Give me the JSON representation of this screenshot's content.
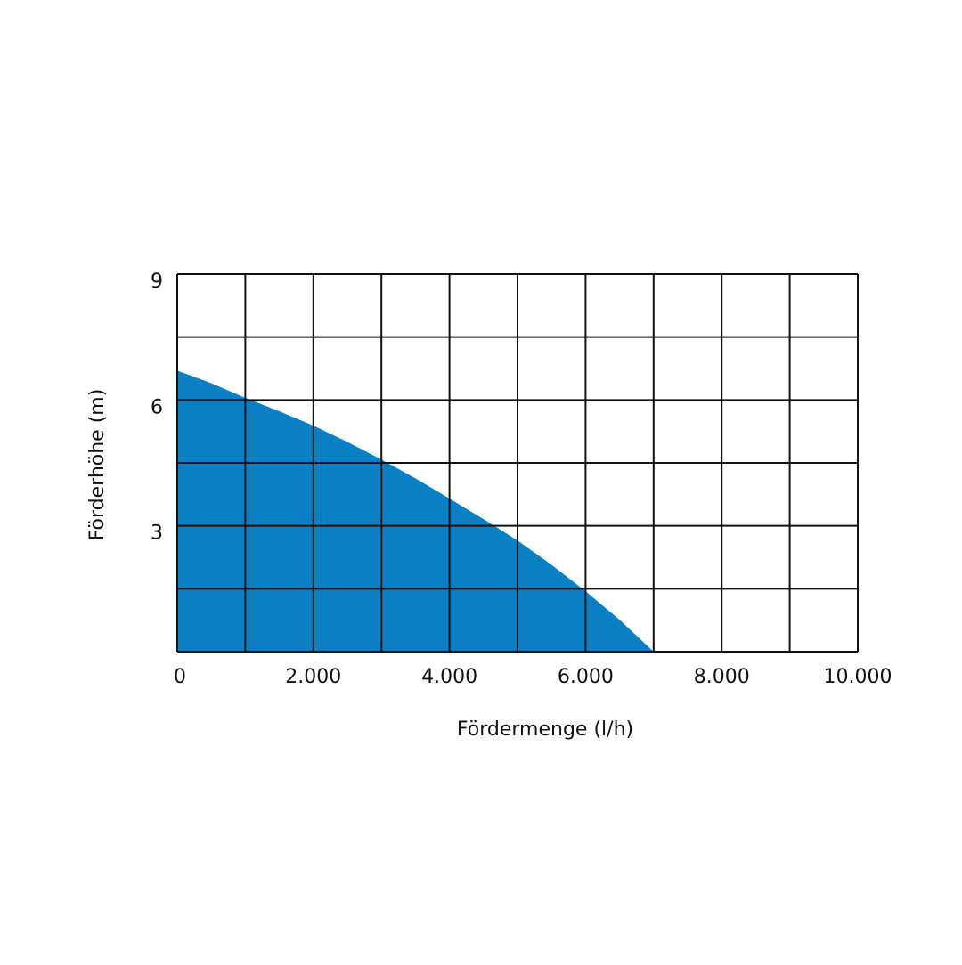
{
  "chart_data": {
    "type": "area",
    "x_label": "Fördermenge (l/h)",
    "y_label": "Förderhöhe (m)",
    "color": "#0b7fc4",
    "x": [
      0,
      500,
      1000,
      1500,
      2000,
      2500,
      3000,
      3500,
      4000,
      4500,
      5000,
      5500,
      6000,
      6500,
      7000
    ],
    "values": [
      6.7,
      6.4,
      6.05,
      5.73,
      5.39,
      5.0,
      4.58,
      4.13,
      3.65,
      3.16,
      2.65,
      2.07,
      1.44,
      0.76,
      0
    ],
    "xlim": [
      0,
      10000
    ],
    "ylim": [
      0,
      9
    ],
    "xticks": [
      0,
      {
        "value": 2000,
        "label": "2.000"
      },
      {
        "value": 4000,
        "label": "4.000"
      },
      {
        "value": 6000,
        "label": "6.000"
      },
      {
        "value": 8000,
        "label": "8.000"
      },
      {
        "value": 10000,
        "label": "10.000"
      }
    ],
    "x_minor_ticks": [
      1000,
      3000,
      5000,
      7000,
      9000
    ],
    "yticks": [
      3,
      6,
      9
    ],
    "y_minor_ticks": [
      1.5,
      4.5,
      7.5
    ],
    "grid": true
  }
}
